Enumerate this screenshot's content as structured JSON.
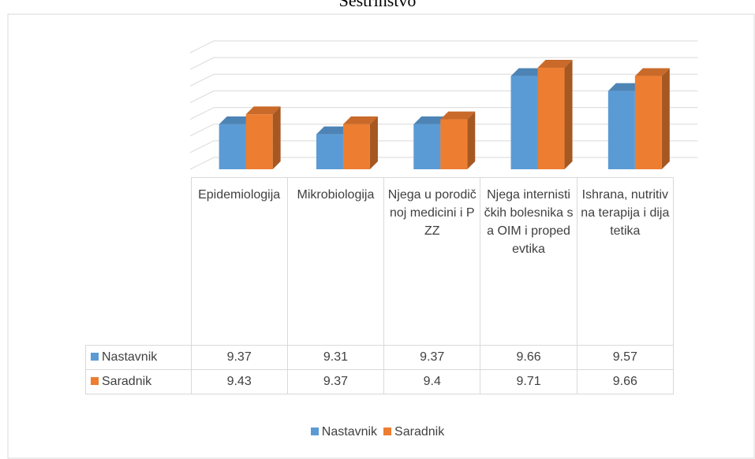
{
  "chart_data": {
    "type": "bar3d",
    "title": "Sestrinstvo",
    "categories": [
      "Epidemiologija",
      "Mikrobiologija",
      "Njega u porodičnoj medicini i PZZ",
      "Njega internističkih bolesnika sa OIM i propedevtika",
      "Ishrana, nutritivna terapija i dijatetika"
    ],
    "series": [
      {
        "name": "Nastavnik",
        "color": "#5b9bd5",
        "values": [
          9.37,
          9.31,
          9.37,
          9.66,
          9.57
        ]
      },
      {
        "name": "Saradnik",
        "color": "#ed7d31",
        "values": [
          9.43,
          9.37,
          9.4,
          9.71,
          9.66
        ]
      }
    ],
    "ylim": [
      9.1,
      9.8
    ],
    "yticks": [
      9.1,
      9.2,
      9.3,
      9.4,
      9.5,
      9.6,
      9.7,
      9.8
    ],
    "grid": true,
    "data_table": true,
    "legend": "bottom"
  }
}
